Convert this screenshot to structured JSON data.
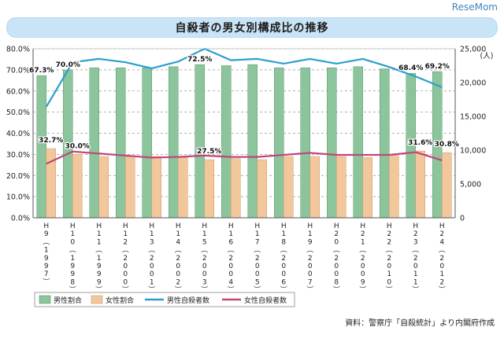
{
  "brand": "ReseMom",
  "title": "自殺者の男女別構成比の推移",
  "source": "資料：警察庁「自殺統計」より内閣府作成",
  "colors": {
    "male_bar": "#8cc49b",
    "female_bar": "#f2c79c",
    "male_line": "#2a9fce",
    "female_line": "#c2467a",
    "grid": "#999999"
  },
  "chart_data": {
    "type": "bar",
    "categories": [
      "H9(1997)",
      "H10(1998)",
      "H11(1999)",
      "H12(2000)",
      "H13(2001)",
      "H14(2002)",
      "H15(2003)",
      "H16(2004)",
      "H17(2005)",
      "H18(2006)",
      "H19(2007)",
      "H20(2008)",
      "H21(2009)",
      "H22(2010)",
      "H23(2011)",
      "H24(2012)"
    ],
    "category_labels": [
      [
        "H",
        "9",
        "(",
        "1",
        "9",
        "9",
        "7",
        ")"
      ],
      [
        "H",
        "1",
        "0",
        "(",
        "1",
        "9",
        "9",
        "8",
        ")"
      ],
      [
        "H",
        "1",
        "1",
        "(",
        "1",
        "9",
        "9",
        "9",
        ")"
      ],
      [
        "H",
        "1",
        "2",
        "(",
        "2",
        "0",
        "0",
        "0",
        ")"
      ],
      [
        "H",
        "1",
        "3",
        "(",
        "2",
        "0",
        "0",
        "1",
        ")"
      ],
      [
        "H",
        "1",
        "4",
        "(",
        "2",
        "0",
        "0",
        "2",
        ")"
      ],
      [
        "H",
        "1",
        "5",
        "(",
        "2",
        "0",
        "0",
        "3",
        ")"
      ],
      [
        "H",
        "1",
        "6",
        "(",
        "2",
        "0",
        "0",
        "4",
        ")"
      ],
      [
        "H",
        "1",
        "7",
        "(",
        "2",
        "0",
        "0",
        "5",
        ")"
      ],
      [
        "H",
        "1",
        "8",
        "(",
        "2",
        "0",
        "0",
        "6",
        ")"
      ],
      [
        "H",
        "1",
        "9",
        "(",
        "2",
        "0",
        "0",
        "7",
        ")"
      ],
      [
        "H",
        "2",
        "0",
        "(",
        "2",
        "0",
        "0",
        "8",
        ")"
      ],
      [
        "H",
        "2",
        "1",
        "(",
        "2",
        "0",
        "0",
        "9",
        ")"
      ],
      [
        "H",
        "2",
        "2",
        "(",
        "2",
        "0",
        "1",
        "0",
        ")"
      ],
      [
        "H",
        "2",
        "3",
        "(",
        "2",
        "0",
        "1",
        "1",
        ")"
      ],
      [
        "H",
        "2",
        "4",
        "(",
        "2",
        "0",
        "1",
        "2",
        ")"
      ]
    ],
    "left_axis": {
      "min": 0,
      "max": 80,
      "step": 10,
      "ticks": [
        "0.0%",
        "10.0%",
        "20.0%",
        "30.0%",
        "40.0%",
        "50.0%",
        "60.0%",
        "70.0%",
        "80.0%"
      ]
    },
    "right_axis": {
      "min": 0,
      "max": 25000,
      "step": 5000,
      "unit": "(人)",
      "ticks": [
        "0",
        "5,000",
        "10,000",
        "15,000",
        "20,000",
        "25,000"
      ]
    },
    "series": [
      {
        "name": "男性割合",
        "type": "bar",
        "axis": "left",
        "values": [
          67.3,
          70.0,
          71.0,
          71.0,
          71.0,
          71.5,
          72.5,
          72.0,
          72.5,
          71.0,
          71.0,
          71.0,
          71.5,
          70.5,
          68.4,
          69.2
        ]
      },
      {
        "name": "女性割合",
        "type": "bar",
        "axis": "left",
        "values": [
          32.7,
          30.0,
          29.0,
          29.0,
          29.0,
          28.5,
          27.5,
          28.0,
          27.5,
          29.0,
          29.0,
          29.0,
          28.5,
          29.5,
          31.6,
          30.8
        ]
      },
      {
        "name": "男性自殺者数",
        "type": "line",
        "axis": "right",
        "values": [
          16400,
          23000,
          23500,
          23000,
          22100,
          23100,
          25000,
          23300,
          23500,
          22800,
          23500,
          22800,
          23500,
          22300,
          20900,
          19300
        ]
      },
      {
        "name": "女性自殺者数",
        "type": "line",
        "axis": "right",
        "values": [
          8000,
          9800,
          9500,
          9200,
          8900,
          9000,
          9200,
          9000,
          9000,
          9300,
          9600,
          9300,
          9300,
          9300,
          9700,
          8500
        ]
      }
    ],
    "data_labels": [
      {
        "series": 0,
        "index": 0,
        "text": "67.3%"
      },
      {
        "series": 0,
        "index": 1,
        "text": "70.0%"
      },
      {
        "series": 0,
        "index": 6,
        "text": "72.5%"
      },
      {
        "series": 0,
        "index": 14,
        "text": "68.4%"
      },
      {
        "series": 0,
        "index": 15,
        "text": "69.2%"
      },
      {
        "series": 1,
        "index": 0,
        "text": "32.7%"
      },
      {
        "series": 1,
        "index": 1,
        "text": "30.0%"
      },
      {
        "series": 1,
        "index": 6,
        "text": "27.5%"
      },
      {
        "series": 1,
        "index": 14,
        "text": "31.6%"
      },
      {
        "series": 1,
        "index": 15,
        "text": "30.8%"
      }
    ],
    "legend": {
      "position": "bottom"
    },
    "grid": "dashed horizontal"
  }
}
